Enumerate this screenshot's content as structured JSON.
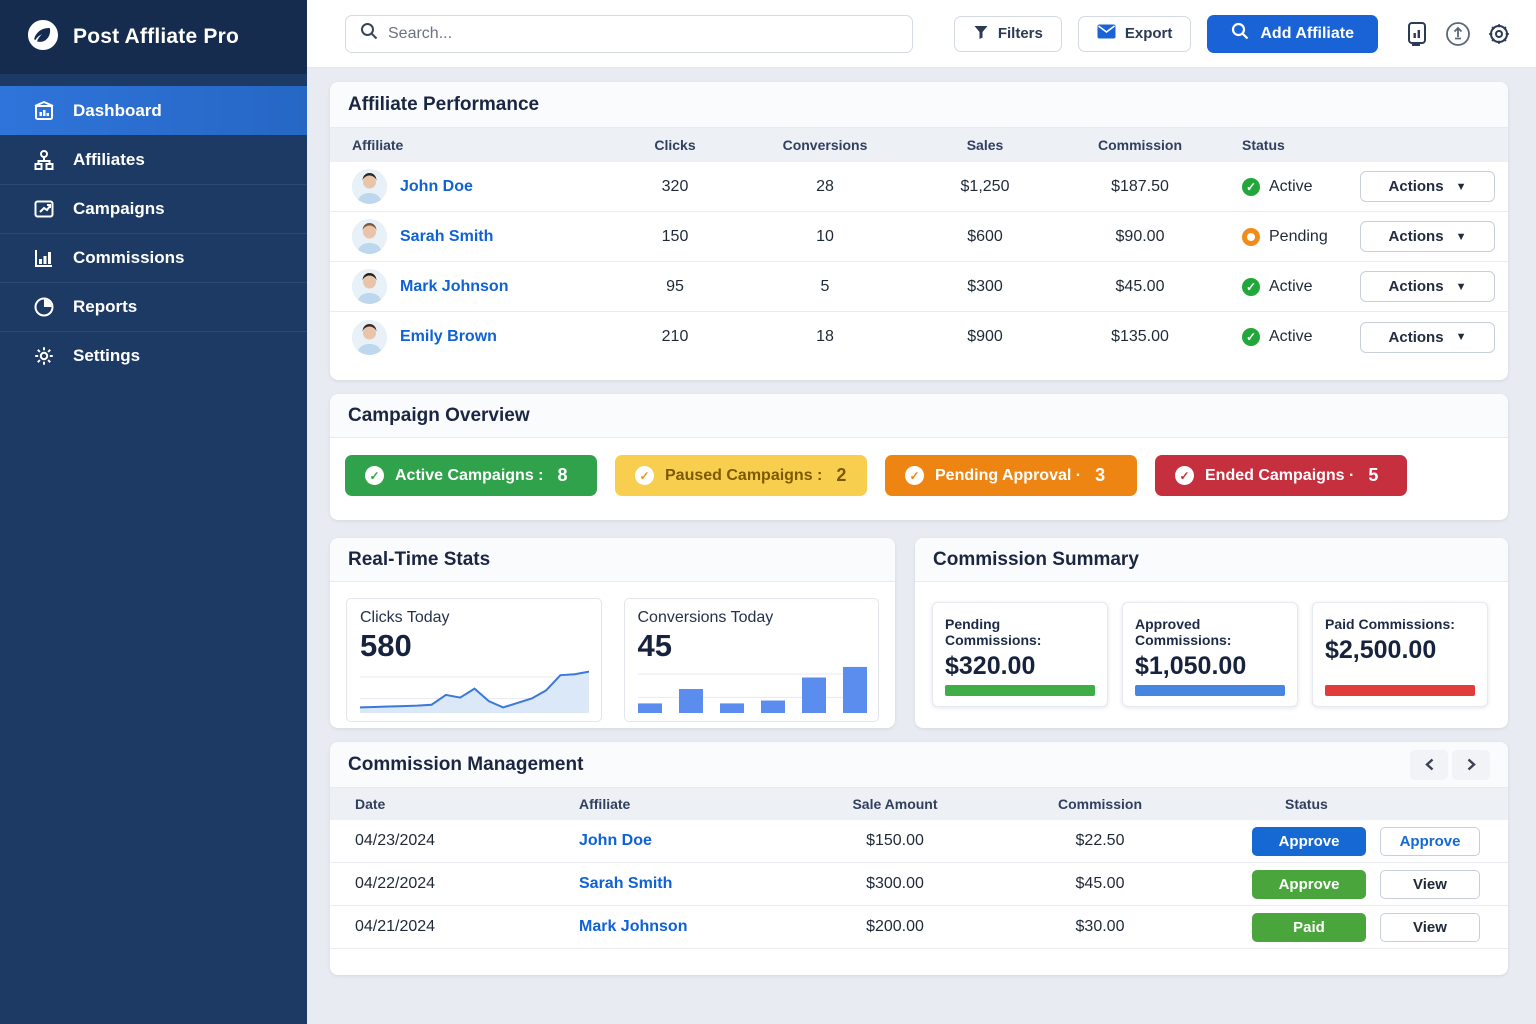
{
  "brand": {
    "name": "Post Affliate Pro"
  },
  "sidebar": {
    "items": [
      {
        "label": "Dashboard",
        "active": true
      },
      {
        "label": "Affiliates",
        "active": false
      },
      {
        "label": "Campaigns",
        "active": false
      },
      {
        "label": "Commissions",
        "active": false
      },
      {
        "label": "Reports",
        "active": false
      },
      {
        "label": "Settings",
        "active": false
      }
    ]
  },
  "topbar": {
    "search_placeholder": "Search...",
    "filters": "Filters",
    "export": "Export",
    "add_affiliate": "Add Affiliate"
  },
  "affiliate_performance": {
    "title": "Affiliate Performance",
    "headers": {
      "affiliate": "Affiliate",
      "clicks": "Clicks",
      "conversions": "Conversions",
      "sales": "Sales",
      "commission": "Commission",
      "status": "Status"
    },
    "actions_label": "Actions",
    "rows": [
      {
        "name": "John Doe",
        "clicks": "320",
        "conversions": "28",
        "sales": "$1,250",
        "commission": "$187.50",
        "status": "Active",
        "status_type": "active"
      },
      {
        "name": "Sarah Smith",
        "clicks": "150",
        "conversions": "10",
        "sales": "$600",
        "commission": "$90.00",
        "status": "Pending",
        "status_type": "pending"
      },
      {
        "name": "Mark Johnson",
        "clicks": "95",
        "conversions": "5",
        "sales": "$300",
        "commission": "$45.00",
        "status": "Active",
        "status_type": "active"
      },
      {
        "name": "Emily Brown",
        "clicks": "210",
        "conversions": "18",
        "sales": "$900",
        "commission": "$135.00",
        "status": "Active",
        "status_type": "active"
      }
    ]
  },
  "campaign_overview": {
    "title": "Campaign Overview",
    "badges": [
      {
        "label": "Active Campaigns :",
        "count": "8",
        "bg": "#31a24c",
        "fg": "#ffffff",
        "icon_fg": "#31a24c"
      },
      {
        "label": "Paused Campaigns :",
        "count": "2",
        "bg": "#f8ce4f",
        "fg": "#7c5a00",
        "icon_fg": "#e8941c"
      },
      {
        "label": "Pending Approval ·",
        "count": "3",
        "bg": "#ee8512",
        "fg": "#ffffff",
        "icon_fg": "#ee8512"
      },
      {
        "label": "Ended Campaigns ·",
        "count": "5",
        "bg": "#c62f3e",
        "fg": "#ffffff",
        "icon_fg": "#c62f3e"
      }
    ]
  },
  "real_time_stats": {
    "title": "Real-Time Stats",
    "clicks_card": {
      "label": "Clicks Today",
      "value": "580"
    },
    "conversions_card": {
      "label": "Conversions Today",
      "value": "45"
    }
  },
  "commission_summary": {
    "title": "Commission Summary",
    "cards": [
      {
        "label": "Pending Commissions:",
        "value": "$320.00",
        "bar_color": "#3fae46"
      },
      {
        "label": "Approved Commissions:",
        "value": "$1,050.00",
        "bar_color": "#4686e0"
      },
      {
        "label": "Paid Commissions:",
        "value": "$2,500.00",
        "bar_color": "#e23b3b"
      }
    ]
  },
  "commission_management": {
    "title": "Commission Management",
    "headers": {
      "date": "Date",
      "affiliate": "Affiliate",
      "sale": "Sale Amount",
      "commission": "Commission",
      "status": "Status"
    },
    "rows": [
      {
        "date": "04/23/2024",
        "affiliate": "John Doe",
        "sale": "$150.00",
        "commission": "$22.50",
        "status_label": "Approve",
        "status_bg": "#1668d2",
        "action_label": "Approve",
        "action_color": "#1668d2"
      },
      {
        "date": "04/22/2024",
        "affiliate": "Sarah Smith",
        "sale": "$300.00",
        "commission": "$45.00",
        "status_label": "Approve",
        "status_bg": "#4aa53c",
        "action_label": "View",
        "action_color": "#1f2937"
      },
      {
        "date": "04/21/2024",
        "affiliate": "Mark Johnson",
        "sale": "$200.00",
        "commission": "$30.00",
        "status_label": "Paid",
        "status_bg": "#4aa53c",
        "action_label": "View",
        "action_color": "#1f2937"
      }
    ]
  },
  "chart_data": [
    {
      "type": "line",
      "title": "Clicks Today",
      "displayed_total": 580,
      "values": [
        4,
        4.5,
        5,
        5.5,
        6,
        7,
        18,
        15,
        25,
        11,
        4,
        9,
        14,
        23,
        40,
        41,
        44
      ],
      "ylim": [
        0,
        48
      ],
      "grid": true,
      "color": "#3b79d9",
      "fill": "#dbe8f8"
    },
    {
      "type": "bar",
      "title": "Conversions Today",
      "displayed_total": 45,
      "values": [
        10,
        25,
        10,
        13,
        37,
        48
      ],
      "ylim": [
        0,
        50
      ],
      "grid": true,
      "color": "#5b8def"
    }
  ]
}
